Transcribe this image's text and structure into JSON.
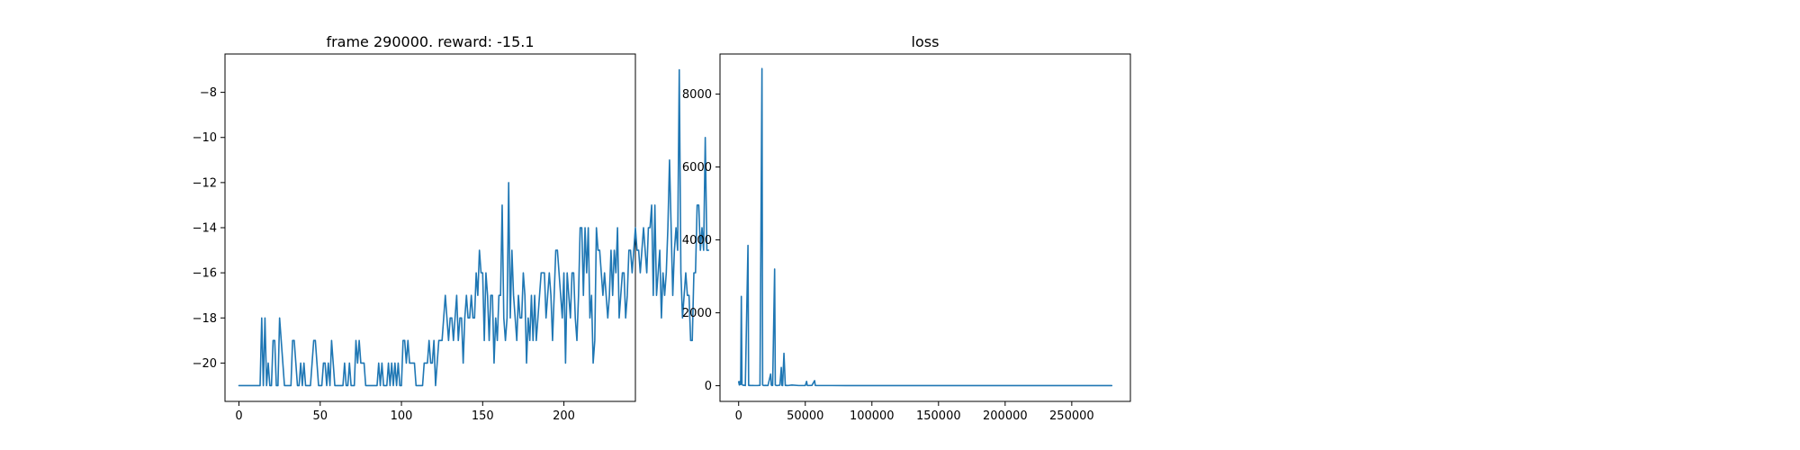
{
  "colors": {
    "series": "#1f77b4",
    "background": "#ffffff",
    "axes": "#000000"
  },
  "chart_data": [
    {
      "type": "line",
      "title": "frame 290000. reward: -15.1",
      "xlabel": "",
      "ylabel": "",
      "xlim": [
        -8.6,
        244
      ],
      "ylim": [
        -21.7,
        -6.3
      ],
      "xticks": [
        0,
        50,
        100,
        150,
        200
      ],
      "xtick_labels": [
        "0",
        "50",
        "100",
        "150",
        "200"
      ],
      "yticks": [
        -20,
        -18,
        -16,
        -14,
        -12,
        -10,
        -8
      ],
      "ytick_labels": [
        "−20",
        "−18",
        "−16",
        "−14",
        "−12",
        "−10",
        "−8"
      ],
      "grid": false,
      "series": [
        {
          "values": [
            -21,
            -21,
            -21,
            -21,
            -21,
            -21,
            -21,
            -21,
            -21,
            -21,
            -21,
            -21,
            -21,
            -21,
            -18,
            -21,
            -18,
            -21,
            -20,
            -21,
            -21,
            -19,
            -19,
            -21,
            -21,
            -18,
            -19,
            -20,
            -21,
            -21,
            -21,
            -21,
            -21,
            -19,
            -19,
            -20,
            -21,
            -21,
            -20,
            -21,
            -20,
            -21,
            -21,
            -21,
            -21,
            -20,
            -19,
            -19,
            -20,
            -21,
            -21,
            -21,
            -20,
            -20,
            -21,
            -20,
            -21,
            -19,
            -20,
            -21,
            -21,
            -21,
            -21,
            -21,
            -21,
            -20,
            -21,
            -21,
            -20,
            -21,
            -21,
            -21,
            -19,
            -20,
            -19,
            -20,
            -20,
            -20,
            -21,
            -21,
            -21,
            -21,
            -21,
            -21,
            -21,
            -21,
            -20,
            -21,
            -20,
            -21,
            -21,
            -21,
            -20,
            -21,
            -20,
            -21,
            -20,
            -21,
            -20,
            -21,
            -21,
            -19,
            -19,
            -20,
            -19,
            -20,
            -20,
            -20,
            -20,
            -21,
            -21,
            -21,
            -21,
            -21,
            -20,
            -20,
            -20,
            -19,
            -20,
            -20,
            -19,
            -21,
            -20,
            -19,
            -19,
            -19,
            -18,
            -17,
            -18,
            -19,
            -18,
            -18,
            -19,
            -18,
            -17,
            -19,
            -18,
            -18,
            -20,
            -18,
            -17,
            -18,
            -18,
            -17,
            -18,
            -18,
            -16,
            -17,
            -15,
            -16,
            -16,
            -19,
            -16,
            -17,
            -19,
            -17,
            -17,
            -20,
            -18,
            -19,
            -17,
            -17,
            -13,
            -18,
            -19,
            -18,
            -12,
            -18,
            -15,
            -17,
            -18,
            -19,
            -17,
            -18,
            -18,
            -16,
            -17,
            -20,
            -18,
            -19,
            -17,
            -19,
            -17,
            -19,
            -18,
            -17,
            -16,
            -16,
            -16,
            -18,
            -17,
            -16,
            -17,
            -19,
            -17,
            -15,
            -15,
            -16,
            -17,
            -18,
            -16,
            -20,
            -16,
            -17,
            -18,
            -16,
            -16,
            -18,
            -19,
            -17,
            -14,
            -14,
            -17,
            -14,
            -16,
            -14,
            -18,
            -17,
            -20,
            -19,
            -14,
            -15,
            -15,
            -16,
            -17,
            -16,
            -17,
            -18,
            -17,
            -15,
            -17,
            -15,
            -16,
            -14,
            -18,
            -17,
            -16,
            -16,
            -18,
            -17,
            -15,
            -15,
            -16,
            -15,
            -14,
            -15,
            -15,
            -16,
            -15,
            -14,
            -15,
            -16,
            -14,
            -14,
            -13,
            -17,
            -13,
            -17,
            -16,
            -15,
            -18,
            -16,
            -17,
            -16,
            -14,
            -11,
            -14,
            -17,
            -15,
            -14,
            -15,
            -7,
            -16,
            -18,
            -17,
            -16,
            -17,
            -17,
            -19,
            -19,
            -16,
            -16,
            -13,
            -13,
            -15,
            -14,
            -15,
            -10,
            -15,
            -15
          ]
        }
      ]
    },
    {
      "type": "line",
      "title": "loss",
      "xlabel": "",
      "ylabel": "",
      "xlim": [
        -14000,
        294000
      ],
      "ylim": [
        -430,
        9100
      ],
      "xticks": [
        0,
        50000,
        100000,
        150000,
        200000,
        250000
      ],
      "xtick_labels": [
        "0",
        "50000",
        "100000",
        "150000",
        "200000",
        "250000"
      ],
      "yticks": [
        0,
        2000,
        4000,
        6000,
        8000
      ],
      "ytick_labels": [
        "0",
        "2000",
        "4000",
        "6000",
        "8000"
      ],
      "grid": false,
      "series": [
        {
          "x": [
            0,
            500,
            1000,
            1500,
            2000,
            2500,
            3000,
            3500,
            4000,
            4500,
            5000,
            7000,
            7500,
            8000,
            8500,
            9000,
            10000,
            12000,
            14000,
            16000,
            17500,
            18000,
            18500,
            19000,
            20000,
            22000,
            24000,
            24500,
            25000,
            25500,
            27000,
            27500,
            28000,
            28500,
            29000,
            31000,
            32000,
            32500,
            33000,
            34000,
            35000,
            35500,
            36000,
            36500,
            37000,
            40000,
            45000,
            50000,
            51000,
            51500,
            52000,
            55000,
            57000,
            57500,
            58000,
            60000,
            65000,
            70000,
            80000,
            90000,
            100000,
            120000,
            150000,
            200000,
            250000,
            280000
          ],
          "y": [
            110,
            20,
            120,
            30,
            2450,
            40,
            20,
            10,
            15,
            10,
            5,
            3850,
            10,
            5,
            10,
            5,
            8,
            5,
            5,
            10,
            8700,
            20,
            10,
            5,
            10,
            5,
            320,
            20,
            5,
            10,
            3200,
            20,
            10,
            5,
            5,
            15,
            500,
            10,
            5,
            890,
            10,
            5,
            10,
            5,
            5,
            20,
            5,
            5,
            120,
            10,
            5,
            10,
            140,
            10,
            5,
            5,
            5,
            5,
            3,
            3,
            3,
            3,
            3,
            3,
            3,
            3
          ]
        }
      ]
    }
  ]
}
